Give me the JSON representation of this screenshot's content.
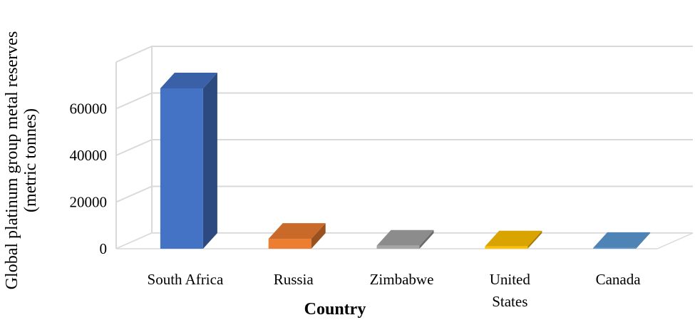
{
  "chart_data": {
    "type": "bar",
    "title": "",
    "xlabel": "Country",
    "ylabel_lines": [
      "Global platinum group metal reserves",
      "(metric tonnes)"
    ],
    "categories": [
      {
        "label_lines": [
          "South Africa"
        ]
      },
      {
        "label_lines": [
          "Russia"
        ]
      },
      {
        "label_lines": [
          "Zimbabwe"
        ]
      },
      {
        "label_lines": [
          "United",
          "States"
        ]
      },
      {
        "label_lines": [
          "Canada"
        ]
      }
    ],
    "values": [
      63000,
      3900,
      1200,
      900,
      310
    ],
    "colors": [
      "#4472c4",
      "#ed7d31",
      "#a5a5a5",
      "#ffc000",
      "#5b9bd5"
    ],
    "ylim": [
      0,
      60000
    ],
    "yticks": [
      "0",
      "20000",
      "40000",
      "60000"
    ],
    "grid": true,
    "legend": "none",
    "style": "3d-column"
  }
}
